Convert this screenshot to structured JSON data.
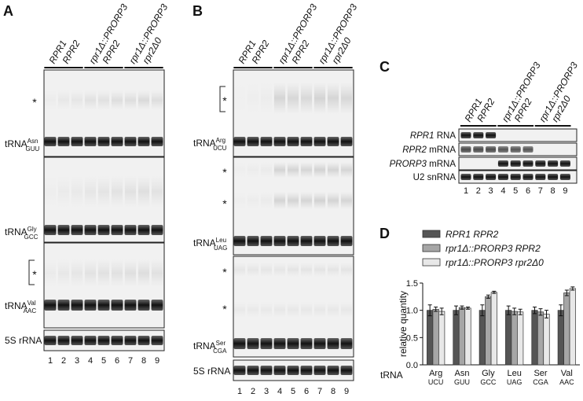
{
  "panels": {
    "A": "A",
    "B": "B",
    "C": "C",
    "D": "D"
  },
  "strains": {
    "s1_line1": "RPR1",
    "s1_line2": "RPR2",
    "s2_line1": "rpr1Δ::PRORP3",
    "s2_line2": "RPR2",
    "s3_line1": "rpr1Δ::PRORP3",
    "s3_line2": "rpr2Δ0"
  },
  "lanes": [
    "1",
    "2",
    "3",
    "4",
    "5",
    "6",
    "7",
    "8",
    "9"
  ],
  "asterisk": "*",
  "panel_a": {
    "rows": [
      {
        "main": "tRNA",
        "sup": "Asn",
        "sub": "GUU"
      },
      {
        "main": "tRNA",
        "sup": "Gly",
        "sub": "GCC"
      },
      {
        "main": "tRNA",
        "sup": "Val",
        "sub": "AAC"
      }
    ],
    "loading": "5S rRNA"
  },
  "panel_b": {
    "rows": [
      {
        "main": "tRNA",
        "sup": "Arg",
        "sub": "UCU"
      },
      {
        "main": "tRNA",
        "sup": "Leu",
        "sub": "UAG"
      },
      {
        "main": "tRNA",
        "sup": "Ser",
        "sub": "CGA"
      }
    ],
    "loading": "5S rRNA"
  },
  "panel_c": {
    "rows": [
      {
        "italic": "RPR1",
        "plain": " RNA"
      },
      {
        "italic": "RPR2",
        "plain": " mRNA"
      },
      {
        "italic": "PRORP3",
        "plain": " mRNA"
      },
      {
        "italic": "",
        "plain": "U2 snRNA"
      }
    ]
  },
  "colors": {
    "series1": "#555555",
    "series2": "#a6a6a6",
    "series3": "#e8e8e8",
    "gel_bg": "#f1f1f1"
  },
  "chart_data": {
    "type": "bar",
    "ylabel": "relative quantity",
    "ylim": [
      0,
      1.5
    ],
    "yticks": [
      "0.0",
      "0.5",
      "1.0",
      "1.5"
    ],
    "x_prefix": "tRNA",
    "categories": [
      "Arg",
      "Asn",
      "Gly",
      "Leu",
      "Ser",
      "Val"
    ],
    "categories_sub": [
      "UCU",
      "GUU",
      "GCC",
      "UAG",
      "CGA",
      "AAC"
    ],
    "series": [
      {
        "name": "RPR1 RPR2",
        "values": [
          1.0,
          1.0,
          1.0,
          1.0,
          1.0,
          1.0
        ],
        "err": [
          0.1,
          0.08,
          0.1,
          0.08,
          0.06,
          0.1
        ]
      },
      {
        "name": "rpr1Δ::PRORP3 RPR2",
        "values": [
          1.02,
          1.05,
          1.25,
          0.98,
          0.97,
          1.32
        ],
        "err": [
          0.04,
          0.03,
          0.03,
          0.06,
          0.06,
          0.05
        ]
      },
      {
        "name": "rpr1Δ::PRORP3 rpr2Δ0",
        "values": [
          0.98,
          1.04,
          1.33,
          0.97,
          0.93,
          1.4
        ],
        "err": [
          0.06,
          0.02,
          0.02,
          0.05,
          0.07,
          0.03
        ]
      }
    ]
  }
}
